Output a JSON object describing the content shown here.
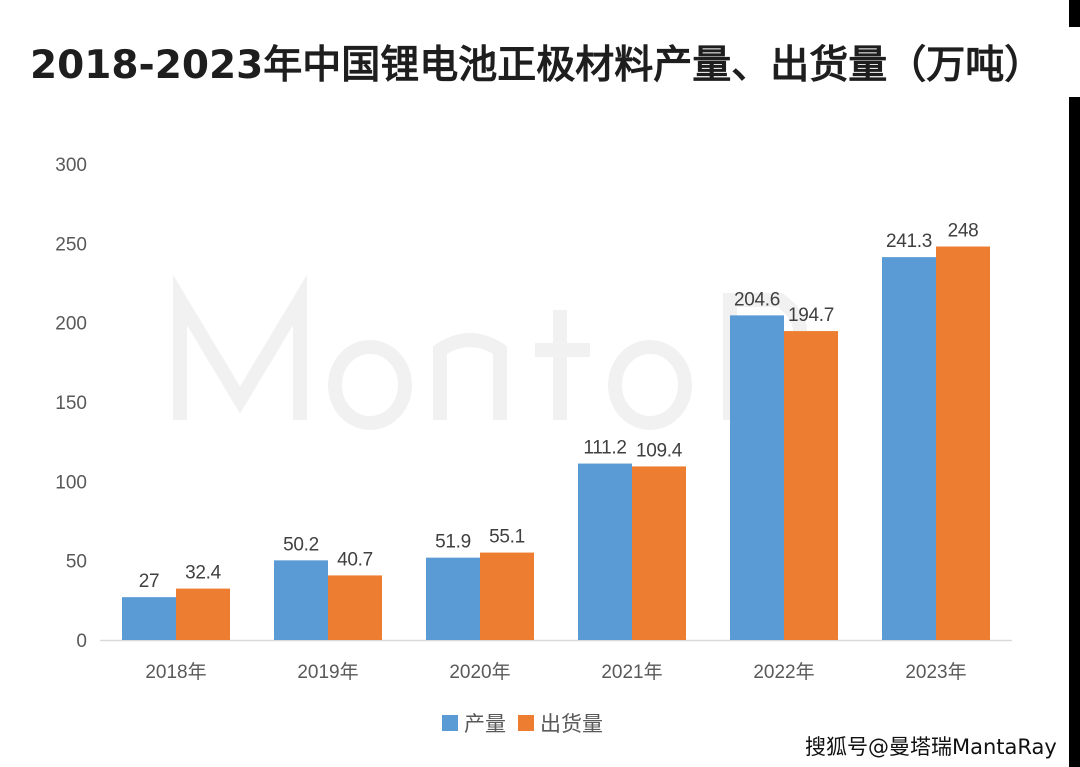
{
  "title": "2018-2023年中国锂电池正极材料产量、出货量（万吨）",
  "watermark": "搜狐号@曼塔瑞MantaRay",
  "background_watermark": "MantaRay",
  "chart_data": {
    "type": "bar",
    "title": "2018-2023年中国锂电池正极材料产量、出货量（万吨）",
    "categories": [
      "2018年",
      "2019年",
      "2020年",
      "2021年",
      "2022年",
      "2023年"
    ],
    "series": [
      {
        "name": "产量",
        "color": "#5b9bd5",
        "values": [
          27,
          50.2,
          51.9,
          111.2,
          204.6,
          241.3
        ]
      },
      {
        "name": "出货量",
        "color": "#ed7d31",
        "values": [
          32.4,
          40.7,
          55.1,
          109.4,
          194.7,
          248
        ]
      }
    ],
    "ylim": [
      0,
      300
    ],
    "yticks": [
      0,
      50,
      100,
      150,
      200,
      250,
      300
    ],
    "grid": false,
    "legend": "bottom",
    "xlabel": "",
    "ylabel": ""
  }
}
